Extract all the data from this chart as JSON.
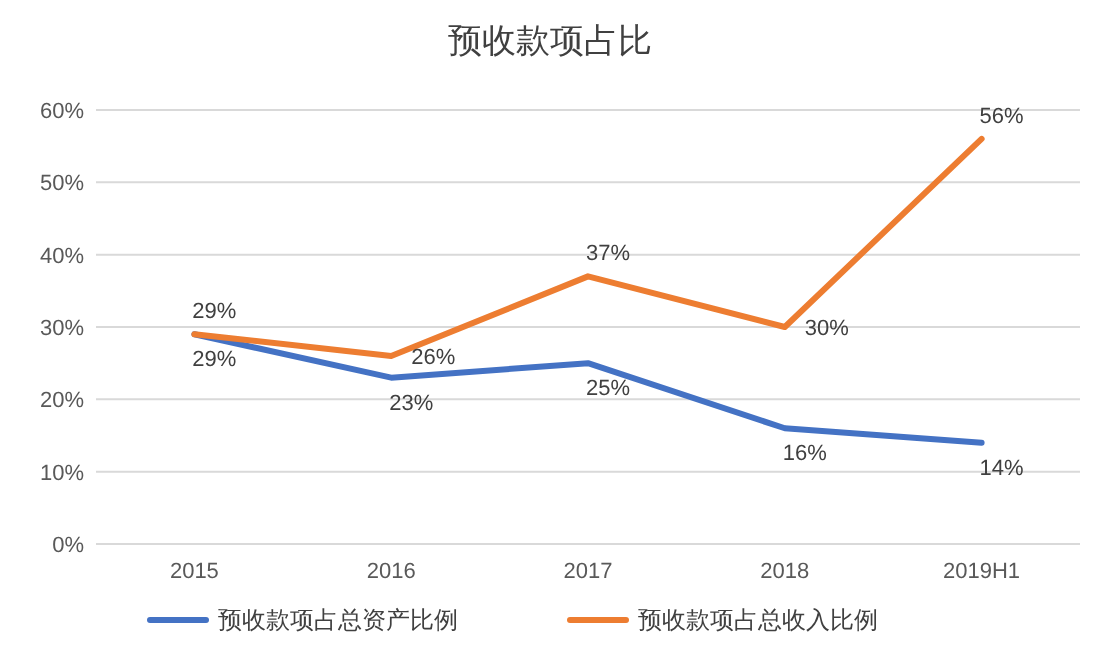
{
  "chart_data": {
    "type": "line",
    "title": "预收款项占比",
    "categories": [
      "2015",
      "2016",
      "2017",
      "2018",
      "2019H1"
    ],
    "series": [
      {
        "name": "预收款项占总资产比例",
        "color": "#4472c4",
        "values": [
          29,
          23,
          25,
          16,
          14
        ],
        "value_labels": [
          "29%",
          "23%",
          "25%",
          "16%",
          "14%"
        ]
      },
      {
        "name": "预收款项占总收入比例",
        "color": "#ed7d31",
        "values": [
          29,
          26,
          37,
          30,
          56
        ],
        "value_labels": [
          "29%",
          "26%",
          "37%",
          "30%",
          "56%"
        ]
      }
    ],
    "ylim": [
      0,
      60
    ],
    "yticks": [
      {
        "value": 0,
        "label": "0%"
      },
      {
        "value": 10,
        "label": "10%"
      },
      {
        "value": 20,
        "label": "20%"
      },
      {
        "value": 30,
        "label": "30%"
      },
      {
        "value": 40,
        "label": "40%"
      },
      {
        "value": 50,
        "label": "50%"
      },
      {
        "value": 60,
        "label": "60%"
      }
    ],
    "grid": "y",
    "legend": "bottom",
    "marker": "none",
    "line_style": "solid"
  }
}
